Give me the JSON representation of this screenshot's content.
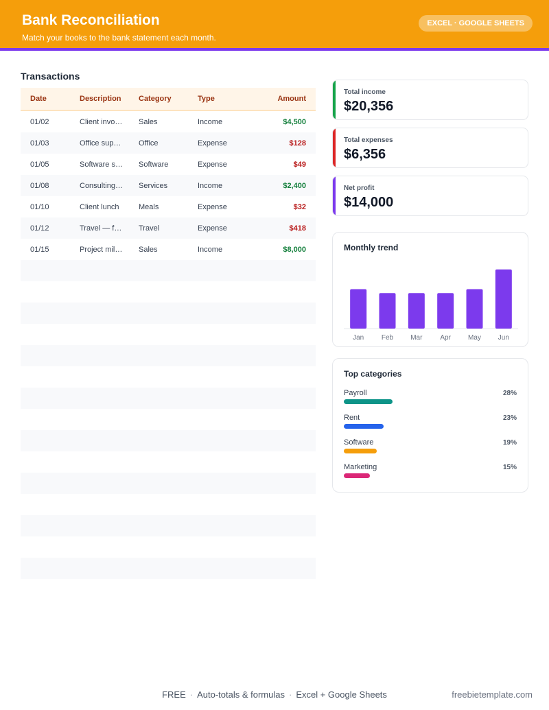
{
  "header": {
    "title": "Bank Reconciliation",
    "subtitle": "Match your books to the bank statement each month.",
    "badge": "EXCEL · GOOGLE SHEETS"
  },
  "transactions": {
    "title": "Transactions",
    "columns": [
      "Date",
      "Description",
      "Category",
      "Type",
      "Amount"
    ],
    "rows": [
      {
        "date": "01/02",
        "description": "Client invo…",
        "category": "Sales",
        "type": "Income",
        "amount": "$4,500"
      },
      {
        "date": "01/03",
        "description": "Office sup…",
        "category": "Office",
        "type": "Expense",
        "amount": "$128"
      },
      {
        "date": "01/05",
        "description": "Software s…",
        "category": "Software",
        "type": "Expense",
        "amount": "$49"
      },
      {
        "date": "01/08",
        "description": "Consulting…",
        "category": "Services",
        "type": "Income",
        "amount": "$2,400"
      },
      {
        "date": "01/10",
        "description": "Client lunch",
        "category": "Meals",
        "type": "Expense",
        "amount": "$32"
      },
      {
        "date": "01/12",
        "description": "Travel — f…",
        "category": "Travel",
        "type": "Expense",
        "amount": "$418"
      },
      {
        "date": "01/15",
        "description": "Project mil…",
        "category": "Sales",
        "type": "Income",
        "amount": "$8,000"
      }
    ],
    "empty_row_count": 15
  },
  "stats": [
    {
      "label": "Total income",
      "value": "$20,356",
      "color": "#16a34a"
    },
    {
      "label": "Total expenses",
      "value": "$6,356",
      "color": "#dc2626"
    },
    {
      "label": "Net profit",
      "value": "$14,000",
      "color": "#7c3aed"
    }
  ],
  "chart_data": {
    "type": "bar",
    "title": "Monthly trend",
    "categories": [
      "Jan",
      "Feb",
      "Mar",
      "Apr",
      "May",
      "Jun"
    ],
    "values": [
      2.0,
      1.8,
      1.8,
      1.8,
      2.0,
      3.0
    ],
    "ylim": [
      0,
      3.2
    ],
    "grid": false,
    "bar_color": "#7c3aed"
  },
  "top_categories": {
    "title": "Top categories",
    "items": [
      {
        "name": "Payroll",
        "pct": "28%",
        "value": 28,
        "color": "#0d9488"
      },
      {
        "name": "Rent",
        "pct": "23%",
        "value": 23,
        "color": "#2563eb"
      },
      {
        "name": "Software",
        "pct": "19%",
        "value": 19,
        "color": "#f59e0b"
      },
      {
        "name": "Marketing",
        "pct": "15%",
        "value": 15,
        "color": "#db2777"
      }
    ]
  },
  "footer": {
    "items": [
      "FREE",
      "Auto-totals & formulas",
      "Excel + Google Sheets"
    ],
    "separator": "·",
    "site": "freebietemplate.com"
  },
  "colors": {
    "header": "#f59e0b",
    "accent": "#7c3aed",
    "income": "#15803d",
    "expense": "#b91c1c"
  }
}
